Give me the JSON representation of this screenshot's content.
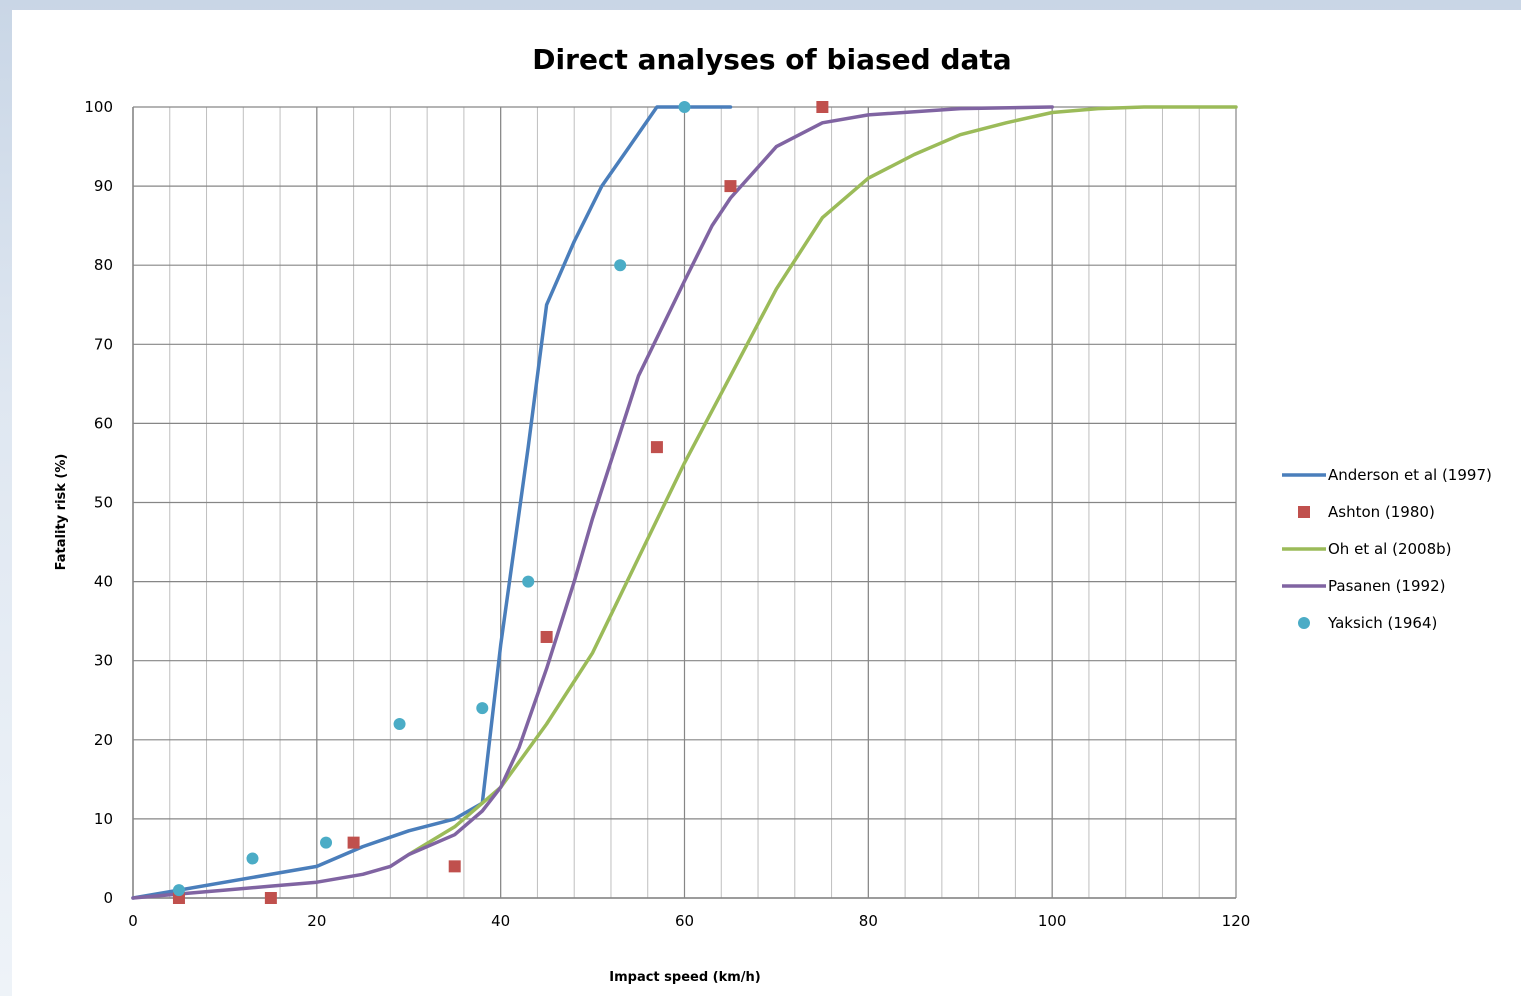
{
  "chart_data": {
    "type": "line",
    "title": "Direct analyses of biased data",
    "xlabel": "Impact speed (km/h)",
    "ylabel": "Fatality risk (%)",
    "xlim": [
      0,
      120
    ],
    "ylim": [
      0,
      100
    ],
    "x_ticks": [
      0,
      20,
      40,
      60,
      80,
      100,
      120
    ],
    "y_ticks": [
      0,
      10,
      20,
      30,
      40,
      50,
      60,
      70,
      80,
      90,
      100
    ],
    "x_minor_step": 4,
    "grid": true,
    "legend_position": "right",
    "series": [
      {
        "name": "Anderson et al (1997)",
        "kind": "line",
        "color": "#4a7ebb",
        "points": [
          [
            0,
            0
          ],
          [
            5,
            1
          ],
          [
            20,
            4
          ],
          [
            25,
            6.5
          ],
          [
            30,
            8.5
          ],
          [
            35,
            10
          ],
          [
            38,
            12
          ],
          [
            40,
            32
          ],
          [
            43,
            57
          ],
          [
            45,
            75
          ],
          [
            48,
            83
          ],
          [
            51,
            90
          ],
          [
            54,
            95
          ],
          [
            57,
            100
          ],
          [
            65,
            100
          ]
        ]
      },
      {
        "name": "Ashton (1980)",
        "kind": "scatter",
        "marker": "square",
        "color": "#c0504d",
        "points": [
          [
            5,
            0
          ],
          [
            15,
            0
          ],
          [
            24,
            7
          ],
          [
            35,
            4
          ],
          [
            45,
            33
          ],
          [
            57,
            57
          ],
          [
            65,
            90
          ],
          [
            75,
            100
          ]
        ]
      },
      {
        "name": "Oh et al (2008b)",
        "kind": "line",
        "color": "#9bbb59",
        "points": [
          [
            30,
            5.5
          ],
          [
            35,
            9
          ],
          [
            40,
            14
          ],
          [
            45,
            22
          ],
          [
            50,
            31
          ],
          [
            55,
            43
          ],
          [
            60,
            55
          ],
          [
            65,
            66
          ],
          [
            70,
            77
          ],
          [
            75,
            86
          ],
          [
            80,
            91
          ],
          [
            85,
            94
          ],
          [
            90,
            96.5
          ],
          [
            95,
            98
          ],
          [
            100,
            99.3
          ],
          [
            105,
            99.8
          ],
          [
            110,
            100
          ],
          [
            120,
            100
          ]
        ]
      },
      {
        "name": "Pasanen (1992)",
        "kind": "line",
        "color": "#8064a2",
        "points": [
          [
            0,
            0
          ],
          [
            5,
            0.5
          ],
          [
            10,
            1
          ],
          [
            15,
            1.5
          ],
          [
            20,
            2
          ],
          [
            25,
            3
          ],
          [
            28,
            4
          ],
          [
            30,
            5.5
          ],
          [
            35,
            8
          ],
          [
            38,
            11
          ],
          [
            40,
            14
          ],
          [
            42,
            19
          ],
          [
            45,
            29
          ],
          [
            48,
            40
          ],
          [
            50,
            48
          ],
          [
            55,
            66
          ],
          [
            60,
            78
          ],
          [
            63,
            85
          ],
          [
            65,
            88.5
          ],
          [
            70,
            95
          ],
          [
            75,
            98
          ],
          [
            80,
            99
          ],
          [
            90,
            99.8
          ],
          [
            100,
            100
          ]
        ]
      },
      {
        "name": "Yaksich (1964)",
        "kind": "scatter",
        "marker": "circle",
        "color": "#4bacc6",
        "points": [
          [
            5,
            1
          ],
          [
            13,
            5
          ],
          [
            21,
            7
          ],
          [
            29,
            22
          ],
          [
            38,
            24
          ],
          [
            43,
            40
          ],
          [
            53,
            80
          ],
          [
            60,
            100
          ]
        ]
      }
    ]
  }
}
